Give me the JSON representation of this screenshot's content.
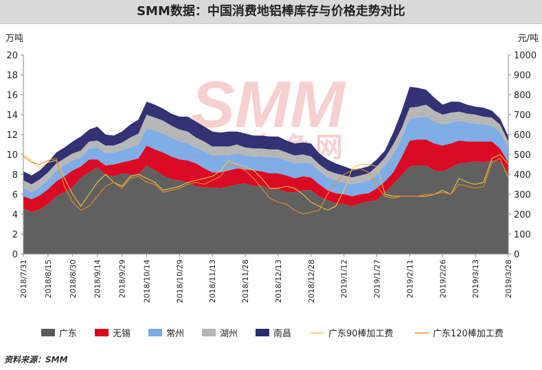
{
  "title": "SMM数据：中国消费地铝棒库存与价格走势对比",
  "source": "资料来源：SMM",
  "watermark": {
    "main": "SMM",
    "sub": "上海有色网"
  },
  "colors": {
    "guangdong": "#595959",
    "wuxi": "#d9001b",
    "changzhou": "#7aaae6",
    "huzhou": "#b4b4b4",
    "nanchang": "#2a2a6e",
    "fee90": "#f5c542",
    "fee120": "#f08c28",
    "watermark": "#f4c0c0"
  },
  "chart_data": {
    "type": "area",
    "stacked": true,
    "x": [
      "2018/7/31",
      "2018/8/6",
      "2018/8/9",
      "2018/8/15",
      "2018/8/20",
      "2018/8/23",
      "2018/8/30",
      "2018/9/3",
      "2018/9/6",
      "2018/9/14",
      "2018/9/17",
      "2018/9/20",
      "2018/9/29",
      "2018/10/8",
      "2018/10/11",
      "2018/10/14",
      "2018/10/18",
      "2018/10/22",
      "2018/10/25",
      "2018/10/29",
      "2018/11/1",
      "2018/11/5",
      "2018/11/8",
      "2018/11/13",
      "2018/11/15",
      "2018/11/19",
      "2018/11/22",
      "2018/11/28",
      "2018/11/29",
      "2018/12/3",
      "2018/12/6",
      "2018/12/13",
      "2018/12/17",
      "2018/12/20",
      "2018/12/24",
      "2018/12/28",
      "2019/1/3",
      "2019/1/7",
      "2019/1/10",
      "2019/1/12",
      "2019/1/17",
      "2019/1/21",
      "2019/1/24",
      "2019/1/27",
      "2019/2/1",
      "2019/2/4",
      "2019/2/8",
      "2019/2/11",
      "2019/2/14",
      "2019/2/18",
      "2019/2/21",
      "2019/2/26",
      "2019/3/1",
      "2019/3/5",
      "2019/3/8",
      "2019/3/13",
      "2019/3/18",
      "2019/3/21",
      "2019/3/25",
      "2019/3/28"
    ],
    "x_tick_labels": [
      "2018/7/31",
      "2018/8/15",
      "2018/8/30",
      "2018/9/14",
      "2018/9/29",
      "2018/10/14",
      "2018/10/29",
      "2018/11/13",
      "2018/11/28",
      "2018/12/13",
      "2018/12/28",
      "2019/1/12",
      "2019/1/27",
      "2019/2/11",
      "2019/2/26",
      "2019/3/13",
      "2019/3/28"
    ],
    "y_left": {
      "label": "万吨",
      "min": 0,
      "max": 20,
      "ticks": [
        "0",
        "2",
        "4",
        "6",
        "8",
        "10",
        "12",
        "14",
        "16",
        "18",
        "20"
      ]
    },
    "y_right": {
      "label": "元/吨",
      "min": 0,
      "max": 1000,
      "ticks": [
        "0",
        "100",
        "200",
        "300",
        "400",
        "500",
        "600",
        "700",
        "800",
        "900",
        "1000"
      ]
    },
    "series": [
      {
        "name": "广东",
        "kind": "area",
        "axis": "left",
        "values": [
          4.6,
          4.2,
          4.5,
          5.0,
          5.8,
          6.2,
          6.7,
          7.7,
          8.2,
          8.7,
          8.0,
          7.8,
          8.1,
          8.0,
          8.0,
          8.9,
          8.4,
          7.9,
          7.5,
          7.4,
          7.2,
          6.8,
          6.7,
          6.7,
          6.6,
          6.8,
          7.0,
          7.1,
          6.8,
          6.9,
          6.5,
          6.5,
          6.2,
          6.2,
          6.4,
          6.4,
          5.8,
          5.4,
          5.1,
          5.0,
          4.8,
          5.1,
          5.3,
          5.4,
          6.2,
          7.0,
          7.9,
          8.8,
          8.9,
          8.9,
          8.4,
          8.3,
          8.7,
          9.1,
          9.2,
          9.3,
          9.2,
          9.4,
          9.3,
          8.1
        ]
      },
      {
        "name": "无锡",
        "kind": "area",
        "axis": "left",
        "values": [
          1.2,
          1.3,
          1.4,
          1.5,
          1.5,
          1.6,
          1.7,
          1.1,
          1.3,
          0.8,
          0.9,
          1.2,
          1.1,
          1.4,
          1.6,
          2.0,
          2.1,
          2.3,
          2.3,
          2.1,
          2.2,
          2.3,
          1.9,
          1.5,
          1.6,
          1.6,
          1.6,
          1.4,
          1.6,
          1.4,
          1.6,
          1.6,
          1.7,
          1.4,
          1.4,
          1.3,
          1.2,
          1.0,
          1.0,
          1.0,
          1.0,
          0.9,
          0.8,
          1.2,
          1.1,
          1.2,
          1.8,
          2.6,
          2.6,
          2.6,
          2.7,
          2.6,
          2.4,
          2.3,
          2.1,
          2.0,
          2.1,
          1.9,
          1.3,
          1.1
        ]
      },
      {
        "name": "常州",
        "kind": "area",
        "axis": "left",
        "values": [
          0.8,
          0.7,
          0.8,
          0.9,
          1.0,
          1.1,
          1.0,
          0.9,
          1.1,
          1.2,
          1.2,
          1.2,
          1.2,
          1.3,
          1.4,
          1.7,
          1.9,
          1.9,
          1.9,
          1.8,
          1.7,
          1.6,
          1.7,
          1.7,
          1.7,
          1.5,
          1.5,
          1.4,
          1.4,
          1.5,
          1.6,
          1.6,
          1.5,
          1.5,
          1.4,
          1.4,
          1.3,
          1.3,
          1.3,
          1.2,
          1.2,
          1.2,
          1.3,
          1.4,
          1.6,
          1.8,
          1.9,
          2.2,
          2.2,
          2.3,
          2.2,
          2.1,
          2.1,
          2.0,
          1.9,
          1.8,
          1.7,
          1.6,
          1.6,
          1.4
        ]
      },
      {
        "name": "湖州",
        "kind": "area",
        "axis": "left",
        "values": [
          0.8,
          0.8,
          0.8,
          0.8,
          0.8,
          0.7,
          0.7,
          0.7,
          0.7,
          0.7,
          0.8,
          0.7,
          0.8,
          1.0,
          1.1,
          1.4,
          1.3,
          1.3,
          1.2,
          1.2,
          1.2,
          1.0,
          1.0,
          0.9,
          0.9,
          0.9,
          0.9,
          0.8,
          0.8,
          0.8,
          0.8,
          0.8,
          0.8,
          0.8,
          0.8,
          0.7,
          0.7,
          0.7,
          0.7,
          0.7,
          0.7,
          0.7,
          0.7,
          0.8,
          0.8,
          1.0,
          1.0,
          1.1,
          1.1,
          1.2,
          1.1,
          1.0,
          1.0,
          0.9,
          0.9,
          0.9,
          0.8,
          0.8,
          0.8,
          0.7
        ]
      },
      {
        "name": "南昌",
        "kind": "area",
        "axis": "left",
        "values": [
          0.9,
          0.9,
          0.9,
          1.0,
          1.1,
          1.1,
          1.2,
          1.4,
          1.2,
          1.4,
          1.1,
          1.0,
          1.1,
          1.3,
          1.4,
          1.3,
          1.3,
          1.2,
          1.2,
          1.3,
          1.5,
          1.6,
          1.5,
          1.5,
          1.4,
          1.5,
          1.3,
          1.4,
          1.3,
          1.3,
          1.3,
          1.3,
          1.2,
          1.2,
          1.2,
          1.3,
          1.1,
          1.1,
          1.0,
          0.9,
          0.8,
          0.7,
          0.7,
          0.7,
          0.7,
          1.2,
          1.7,
          2.1,
          1.9,
          1.5,
          1.3,
          1.0,
          1.1,
          1.0,
          0.9,
          0.8,
          0.9,
          0.7,
          0.6,
          0.5
        ]
      },
      {
        "name": "广东90棒加工费",
        "kind": "line",
        "axis": "right",
        "values": [
          500,
          470,
          430,
          460,
          470,
          380,
          300,
          240,
          300,
          360,
          400,
          360,
          340,
          390,
          400,
          380,
          360,
          320,
          330,
          340,
          360,
          370,
          380,
          390,
          420,
          470,
          450,
          440,
          420,
          380,
          330,
          330,
          340,
          330,
          300,
          260,
          240,
          220,
          240,
          320,
          430,
          450,
          450,
          440,
          300,
          290,
          290,
          290,
          290,
          290,
          300,
          320,
          300,
          380,
          360,
          350,
          360,
          480,
          500,
          450
        ]
      },
      {
        "name": "广东120棒加工费",
        "kind": "line",
        "axis": "right",
        "values": [
          490,
          460,
          450,
          470,
          480,
          340,
          260,
          220,
          240,
          290,
          340,
          360,
          330,
          380,
          390,
          360,
          350,
          310,
          320,
          330,
          350,
          360,
          350,
          370,
          390,
          450,
          440,
          420,
          380,
          330,
          280,
          260,
          250,
          220,
          200,
          210,
          220,
          300,
          360,
          400,
          420,
          430,
          410,
          340,
          290,
          280,
          290,
          290,
          290,
          300,
          300,
          310,
          300,
          350,
          340,
          330,
          340,
          460,
          480,
          380
        ]
      }
    ],
    "legend": {
      "position": "bottom",
      "entries": [
        "广东",
        "无锡",
        "常州",
        "湖州",
        "南昌",
        "广东90棒加工费",
        "广东120棒加工费"
      ]
    },
    "grid": false
  }
}
